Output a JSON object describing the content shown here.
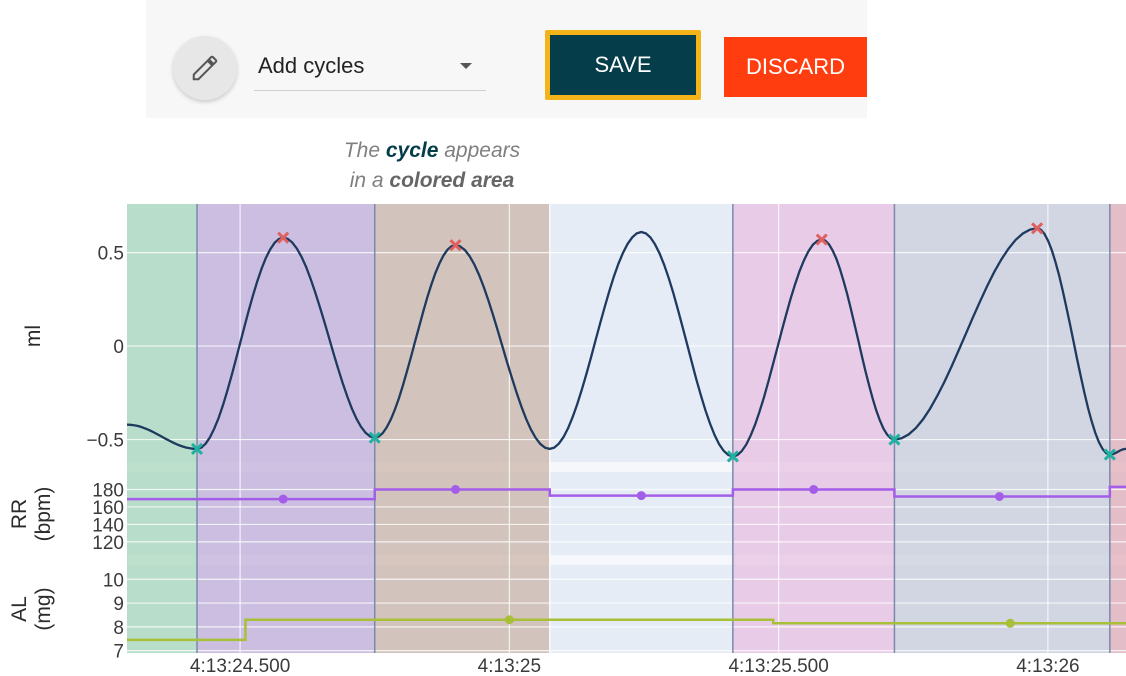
{
  "toolbar": {
    "edit_icon": "pencil-icon",
    "mode_value": "Add cycles",
    "caret_icon": "caret-down-icon",
    "save_label": "SAVE",
    "discard_label": "DISCARD",
    "colors": {
      "save": "#053d4a",
      "save_highlight": "#f3b319",
      "discard": "#ff3d0e"
    }
  },
  "callout": {
    "line1_pre": "The ",
    "line1_bold": "cycle",
    "line1_post": " appears",
    "line2_pre": "in a ",
    "line2_bold": "colored area"
  },
  "chart_data": [
    {
      "type": "line",
      "ylabel": "ml",
      "yticks": [
        0.5,
        0,
        -0.5
      ],
      "ytick_labels": [
        "0.5",
        "0",
        "−0.5"
      ],
      "ylim": [
        -0.62,
        0.76
      ],
      "grid": true,
      "line_color": "#1e3a5f",
      "peaks": [
        {
          "x": 24.58,
          "y": 0.58
        },
        {
          "x": 24.9,
          "y": 0.54
        },
        {
          "x": 25.58,
          "y": 0.57
        },
        {
          "x": 25.98,
          "y": 0.63
        }
      ],
      "troughs": [
        {
          "x": 24.42,
          "y": -0.55
        },
        {
          "x": 24.75,
          "y": -0.49
        },
        {
          "x": 25.415,
          "y": -0.59
        },
        {
          "x": 25.715,
          "y": -0.5
        },
        {
          "x": 26.115,
          "y": -0.58
        }
      ],
      "peak_color": "#e06060",
      "trough_color": "#20b2a0"
    },
    {
      "type": "line",
      "ylabel_line1": "RR",
      "ylabel_line2": "(bpm)",
      "yticks": [
        180,
        160,
        140,
        120
      ],
      "ytick_labels": [
        "180",
        "160",
        "140",
        "120"
      ],
      "ylim": [
        105,
        200
      ],
      "line_color": "#a45de8",
      "steps": [
        {
          "x0": 24.29,
          "x1": 24.75,
          "y": 169
        },
        {
          "x0": 24.75,
          "x1": 25.075,
          "y": 180
        },
        {
          "x0": 25.075,
          "x1": 25.415,
          "y": 173
        },
        {
          "x0": 25.415,
          "x1": 25.715,
          "y": 180
        },
        {
          "x0": 25.715,
          "x1": 26.115,
          "y": 172
        },
        {
          "x0": 26.115,
          "x1": 26.145,
          "y": 183
        }
      ],
      "markers": [
        {
          "x": 24.58,
          "y": 169
        },
        {
          "x": 24.9,
          "y": 180
        },
        {
          "x": 25.245,
          "y": 173
        },
        {
          "x": 25.565,
          "y": 180
        },
        {
          "x": 25.91,
          "y": 172
        }
      ]
    },
    {
      "type": "line",
      "ylabel_line1": "AL",
      "ylabel_line2": "(mg)",
      "yticks": [
        10,
        9,
        8,
        7
      ],
      "ytick_labels": [
        "10",
        "9",
        "8",
        "7"
      ],
      "ylim": [
        6.9,
        10.6
      ],
      "line_color": "#a8c038",
      "steps": [
        {
          "x0": 24.29,
          "x1": 24.51,
          "y": 7.45
        },
        {
          "x0": 24.51,
          "x1": 25.49,
          "y": 8.3
        },
        {
          "x0": 25.49,
          "x1": 26.145,
          "y": 8.15
        }
      ],
      "markers": [
        {
          "x": 25.0,
          "y": 8.3
        },
        {
          "x": 25.93,
          "y": 8.15
        }
      ]
    }
  ],
  "x_axis": {
    "ticks": [
      24.5,
      25.0,
      25.5,
      26.0
    ],
    "tick_labels": [
      "4:13:24.500",
      "4:13:25",
      "4:13:25.500",
      "4:13:26"
    ],
    "xlim": [
      24.29,
      26.145
    ]
  },
  "cycle_regions": [
    {
      "x0": 24.29,
      "x1": 24.42,
      "color": "#a8d8bc"
    },
    {
      "x0": 24.42,
      "x1": 24.75,
      "color": "#c2afd9"
    },
    {
      "x0": 24.75,
      "x1": 25.075,
      "color": "#cbb5a8"
    },
    {
      "x0": 25.415,
      "x1": 25.715,
      "color": "#e8c2e2"
    },
    {
      "x0": 25.715,
      "x1": 26.115,
      "color": "#c9cfdb"
    },
    {
      "x0": 26.115,
      "x1": 26.145,
      "color": "#e2aeb8"
    }
  ],
  "plot_background": "#e5ecf6"
}
